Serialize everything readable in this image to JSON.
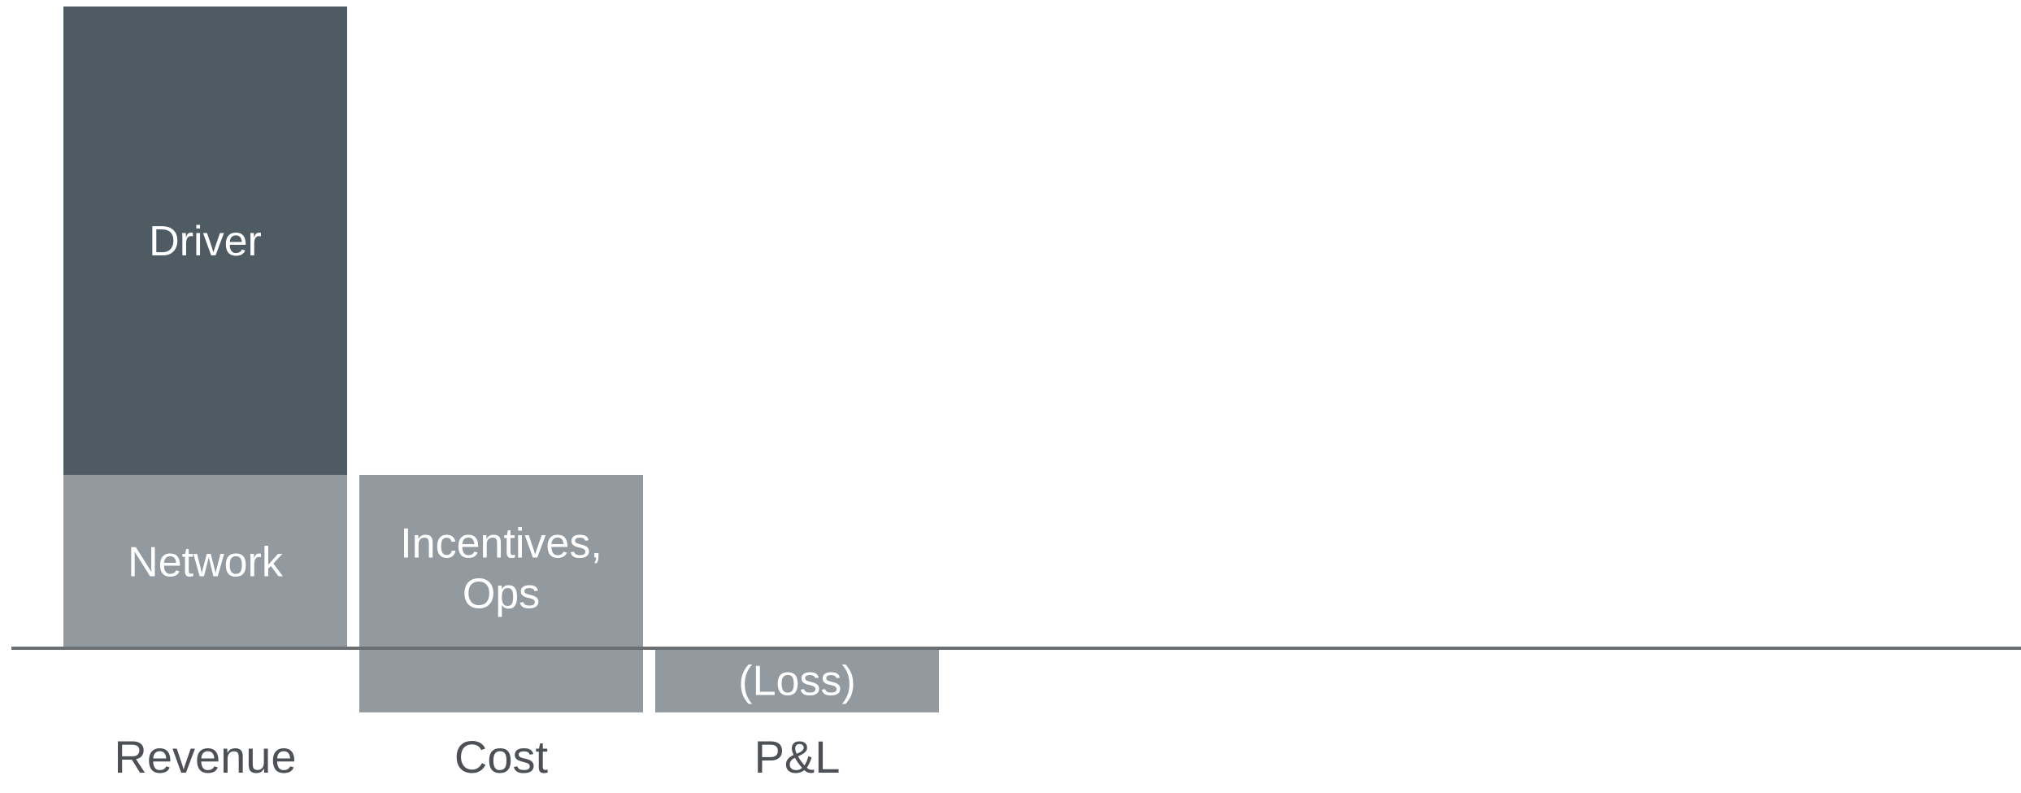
{
  "chart_data": {
    "type": "bar",
    "subtype": "stacked-waterfall",
    "categories": [
      "Revenue",
      "Cost",
      "P&L"
    ],
    "segments": [
      {
        "category": "Revenue",
        "label": "Network",
        "bottom": 0,
        "top": 27,
        "color": "#929a9f"
      },
      {
        "category": "Revenue",
        "label": "Driver",
        "bottom": 27,
        "top": 100,
        "color": "#4e5b63"
      },
      {
        "category": "Cost",
        "label": [
          "Incentives,",
          "Ops"
        ],
        "bottom": -10,
        "top": 27,
        "color": "#929a9f"
      },
      {
        "category": "P&L",
        "label": [
          "(Loss)"
        ],
        "bottom": -10,
        "top": 0,
        "color": "#929a9f"
      }
    ],
    "ylim": [
      -10,
      100
    ],
    "baseline": 0,
    "grid": false,
    "legend": "none",
    "colors": {
      "dark_segment": "#4e5b63",
      "light_segment": "#929a9f",
      "axis_line": "#6b6e72",
      "category_text": "#4d5055",
      "segment_text": "#ffffff"
    }
  }
}
